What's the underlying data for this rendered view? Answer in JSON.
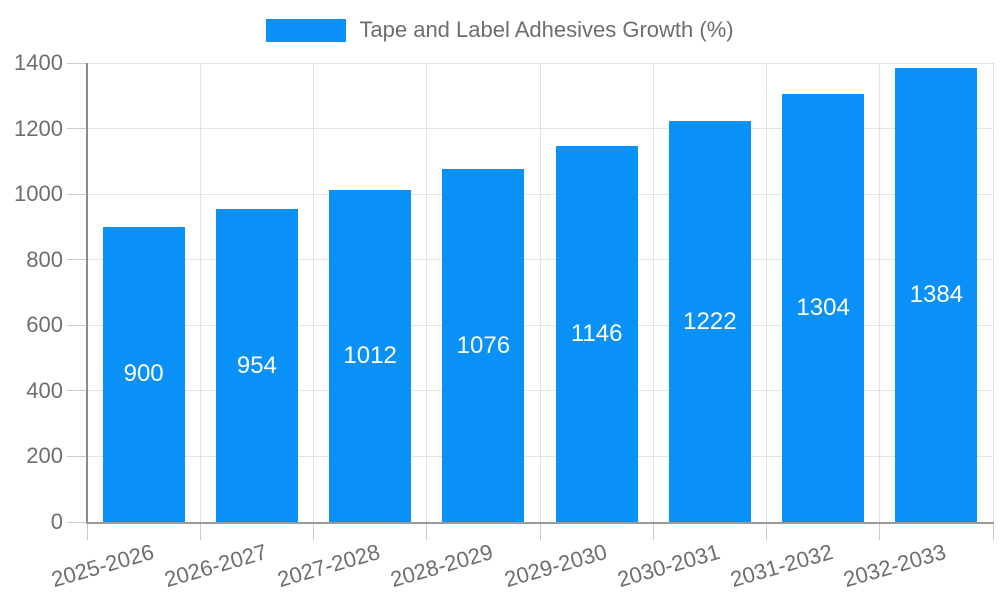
{
  "chart_data": {
    "type": "bar",
    "title": "Tape and Label Adhesives Growth (%)",
    "legend_position": "top",
    "categories": [
      "2025-2026",
      "2026-2027",
      "2027-2028",
      "2028-2029",
      "2029-2030",
      "2030-2031",
      "2031-2032",
      "2032-2033"
    ],
    "values": [
      900,
      954,
      1012,
      1076,
      1146,
      1222,
      1304,
      1384
    ],
    "value_labels": [
      "900",
      "954",
      "1012",
      "1076",
      "1146",
      "1222",
      "1304",
      "1384"
    ],
    "xlabel": "",
    "ylabel": "",
    "ylim": [
      0,
      1400
    ],
    "yticks": [
      0,
      200,
      400,
      600,
      800,
      1000,
      1200,
      1400
    ],
    "ytick_labels": [
      "0",
      "200",
      "400",
      "600",
      "800",
      "1000",
      "1200",
      "1400"
    ],
    "grid": true,
    "colors": {
      "bar": "#0991f8",
      "value_label": "#ffffff",
      "axis_text": "#6e6e6e",
      "legend_text": "#6e6e6e",
      "gridline": "#e3e3e3",
      "tick": "#cccccc",
      "y_axis_line": "#8c8c8c",
      "x_axis_line": "#9b9b9b",
      "background": "#ffffff"
    }
  }
}
